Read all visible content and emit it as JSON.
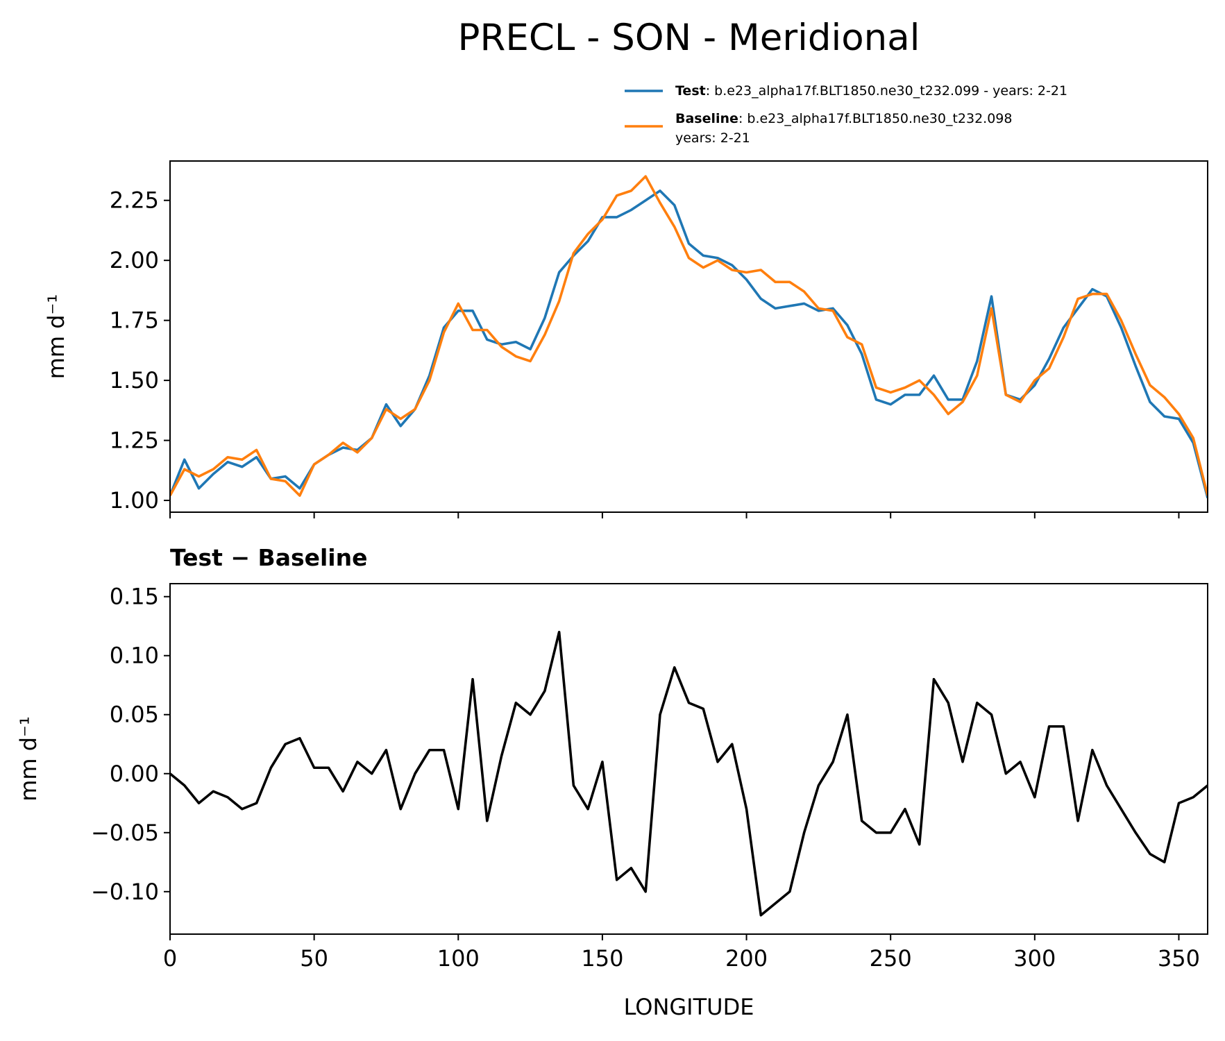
{
  "chart_data": [
    {
      "type": "line",
      "title": "PRECL - SON - Meridional",
      "ylabel": "mm d⁻¹",
      "x": [
        0,
        5,
        10,
        15,
        20,
        25,
        30,
        35,
        40,
        45,
        50,
        55,
        60,
        65,
        70,
        75,
        80,
        85,
        90,
        95,
        100,
        105,
        110,
        115,
        120,
        125,
        130,
        135,
        140,
        145,
        150,
        155,
        160,
        165,
        170,
        175,
        180,
        185,
        190,
        195,
        200,
        205,
        210,
        215,
        220,
        225,
        230,
        235,
        240,
        245,
        250,
        255,
        260,
        265,
        270,
        275,
        280,
        285,
        290,
        295,
        300,
        305,
        310,
        315,
        320,
        325,
        330,
        335,
        340,
        345,
        350,
        355,
        360
      ],
      "series": [
        {
          "name": "Test",
          "detail": [
            ": b.e23_alpha17f.BLT1850.ne30_t232.099 - years: 2-21"
          ],
          "color": "#1f77b4",
          "values": [
            1.02,
            1.17,
            1.05,
            1.11,
            1.16,
            1.14,
            1.18,
            1.09,
            1.1,
            1.05,
            1.15,
            1.19,
            1.22,
            1.21,
            1.26,
            1.4,
            1.31,
            1.38,
            1.52,
            1.72,
            1.79,
            1.79,
            1.67,
            1.65,
            1.66,
            1.63,
            1.76,
            1.95,
            2.02,
            2.08,
            2.18,
            2.18,
            2.21,
            2.25,
            2.29,
            2.23,
            2.07,
            2.02,
            2.01,
            1.98,
            1.92,
            1.84,
            1.8,
            1.81,
            1.82,
            1.79,
            1.8,
            1.73,
            1.61,
            1.42,
            1.4,
            1.44,
            1.44,
            1.52,
            1.42,
            1.42,
            1.58,
            1.85,
            1.44,
            1.42,
            1.48,
            1.59,
            1.72,
            1.8,
            1.88,
            1.85,
            1.72,
            1.56,
            1.41,
            1.35,
            1.34,
            1.24,
            1.01
          ]
        },
        {
          "name": "Baseline",
          "detail": [
            ": b.e23_alpha17f.BLT1850.ne30_t232.098",
            "years: 2-21"
          ],
          "color": "#ff7f0e",
          "values": [
            1.02,
            1.13,
            1.1,
            1.13,
            1.18,
            1.17,
            1.21,
            1.09,
            1.08,
            1.02,
            1.15,
            1.19,
            1.24,
            1.2,
            1.26,
            1.38,
            1.34,
            1.38,
            1.5,
            1.7,
            1.82,
            1.71,
            1.71,
            1.64,
            1.6,
            1.58,
            1.69,
            1.83,
            2.03,
            2.11,
            2.17,
            2.27,
            2.29,
            2.35,
            2.24,
            2.14,
            2.01,
            1.97,
            2.0,
            1.96,
            1.95,
            1.96,
            1.91,
            1.91,
            1.87,
            1.8,
            1.79,
            1.68,
            1.65,
            1.47,
            1.45,
            1.47,
            1.5,
            1.44,
            1.36,
            1.41,
            1.52,
            1.8,
            1.44,
            1.41,
            1.5,
            1.55,
            1.68,
            1.84,
            1.86,
            1.86,
            1.75,
            1.61,
            1.48,
            1.43,
            1.36,
            1.26,
            1.02
          ]
        }
      ],
      "xlim": [
        0,
        360
      ],
      "xticks": [
        0,
        50,
        100,
        150,
        200,
        250,
        300,
        350
      ],
      "show_xtick_labels": false,
      "ylim": [
        0.951,
        2.414
      ],
      "yticks": [
        {
          "value": 1,
          "label": "1.00"
        },
        1.25,
        {
          "value": 1.5,
          "label": "1.50"
        },
        1.75,
        {
          "value": 2,
          "label": "2.00"
        },
        2.25
      ]
    },
    {
      "type": "line",
      "title": "Test − Baseline",
      "ylabel": "mm d⁻¹",
      "xlabel": "LONGITUDE",
      "x": [
        0,
        5,
        10,
        15,
        20,
        25,
        30,
        35,
        40,
        45,
        50,
        55,
        60,
        65,
        70,
        75,
        80,
        85,
        90,
        95,
        100,
        105,
        110,
        115,
        120,
        125,
        130,
        135,
        140,
        145,
        150,
        155,
        160,
        165,
        170,
        175,
        180,
        185,
        190,
        195,
        200,
        205,
        210,
        215,
        220,
        225,
        230,
        235,
        240,
        245,
        250,
        255,
        260,
        265,
        270,
        275,
        280,
        285,
        290,
        295,
        300,
        305,
        310,
        315,
        320,
        325,
        330,
        335,
        340,
        345,
        350,
        355,
        360
      ],
      "series": [
        {
          "color": "#000000",
          "values": [
            0,
            -0.01,
            -0.025,
            -0.015,
            -0.02,
            -0.03,
            -0.025,
            0.005,
            0.025,
            0.03,
            0.005,
            0.005,
            -0.015,
            0.01,
            0,
            0.02,
            -0.03,
            0,
            0.02,
            0.02,
            -0.03,
            0.08,
            -0.04,
            0.015,
            0.06,
            0.05,
            0.07,
            0.12,
            -0.01,
            -0.03,
            0.01,
            -0.09,
            -0.08,
            -0.1,
            0.05,
            0.09,
            0.06,
            0.055,
            0.01,
            0.025,
            -0.03,
            -0.12,
            -0.11,
            -0.1,
            -0.05,
            -0.01,
            0.01,
            0.05,
            -0.04,
            -0.05,
            -0.05,
            -0.03,
            -0.06,
            0.08,
            0.06,
            0.01,
            0.06,
            0.05,
            0,
            0.01,
            -0.02,
            0.04,
            0.04,
            -0.04,
            0.02,
            -0.01,
            -0.03,
            -0.05,
            -0.068,
            -0.075,
            -0.025,
            -0.02,
            -0.01
          ]
        }
      ],
      "xlim": [
        0,
        360
      ],
      "xticks": [
        0,
        50,
        100,
        150,
        200,
        250,
        300,
        350
      ],
      "show_xtick_labels": true,
      "ylim": [
        -0.136,
        0.161
      ],
      "yticks": [
        {
          "value": -0.1,
          "label": "−0.10"
        },
        {
          "value": -0.05,
          "label": "−0.05"
        },
        {
          "value": 0,
          "label": "0.00"
        },
        0.05,
        {
          "value": 0.1,
          "label": "0.10"
        },
        0.15
      ]
    }
  ]
}
